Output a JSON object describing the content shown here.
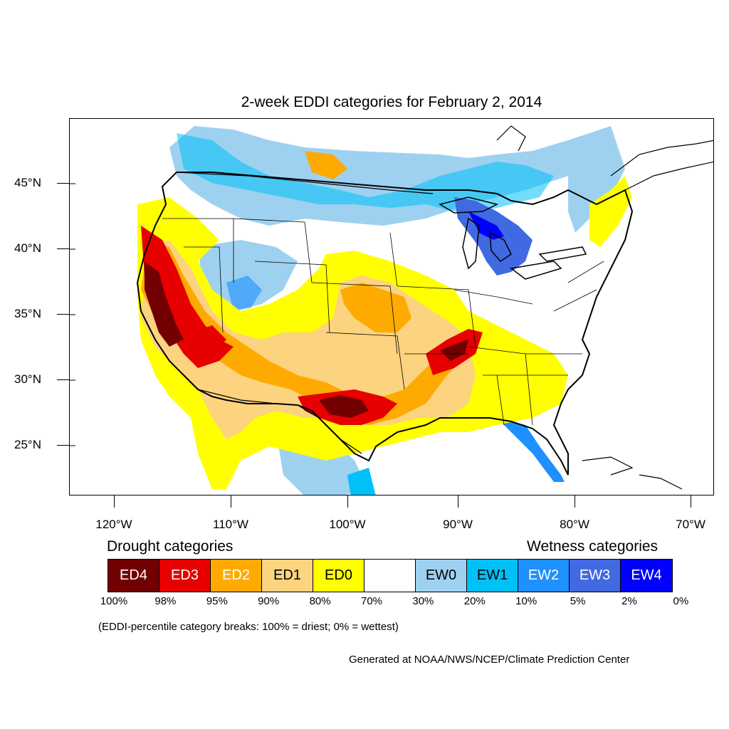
{
  "title": "2-week EDDI categories for February 2, 2014",
  "lat_labels": [
    "45°N",
    "40°N",
    "35°N",
    "30°N",
    "25°N"
  ],
  "lon_labels": [
    "120°W",
    "110°W",
    "100°W",
    "90°W",
    "80°W",
    "70°W"
  ],
  "legend": {
    "drought_heading": "Drought categories",
    "wetness_heading": "Wetness categories",
    "categories": [
      {
        "label": "ED4",
        "color": "#730000",
        "text_color": "#ffffff"
      },
      {
        "label": "ED3",
        "color": "#e60000",
        "text_color": "#ffffff"
      },
      {
        "label": "ED2",
        "color": "#ffaa00",
        "text_color": "#ffffff"
      },
      {
        "label": "ED1",
        "color": "#fcd37f",
        "text_color": "#000000"
      },
      {
        "label": "ED0",
        "color": "#ffff00",
        "text_color": "#000000"
      },
      {
        "label": "",
        "color": "#ffffff",
        "text_color": "#000000"
      },
      {
        "label": "EW0",
        "color": "#9ed1f0",
        "text_color": "#000000"
      },
      {
        "label": "EW1",
        "color": "#00c0f8",
        "text_color": "#000000"
      },
      {
        "label": "EW2",
        "color": "#1e90ff",
        "text_color": "#ffffff"
      },
      {
        "label": "EW3",
        "color": "#4169e1",
        "text_color": "#ffffff"
      },
      {
        "label": "EW4",
        "color": "#0000ff",
        "text_color": "#ffffff"
      }
    ],
    "breaks": [
      "100%",
      "98%",
      "95%",
      "90%",
      "80%",
      "70%",
      "30%",
      "20%",
      "10%",
      "5%",
      "2%",
      "0%"
    ]
  },
  "note": "(EDDI-percentile category breaks: 100% = driest; 0% = wettest)",
  "credit": "Generated at NOAA/NWS/NCEP/Climate Prediction Center"
}
